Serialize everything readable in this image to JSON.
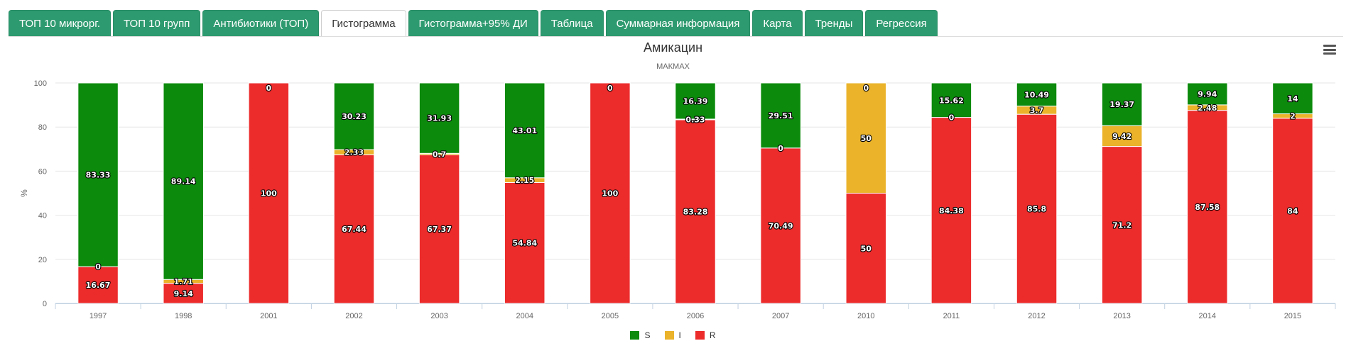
{
  "tabs": [
    {
      "label": "ТОП 10 микрорг.",
      "active": false
    },
    {
      "label": "ТОП 10 групп",
      "active": false
    },
    {
      "label": "Антибиотики (ТОП)",
      "active": false
    },
    {
      "label": "Гистограмма",
      "active": true
    },
    {
      "label": "Гистограмма+95% ДИ",
      "active": false
    },
    {
      "label": "Таблица",
      "active": false
    },
    {
      "label": "Суммарная информация",
      "active": false
    },
    {
      "label": "Карта",
      "active": false
    },
    {
      "label": "Тренды",
      "active": false
    },
    {
      "label": "Регрессия",
      "active": false
    }
  ],
  "menu_icon": "hamburger-menu-icon",
  "colors": {
    "S": "#0b8a0b",
    "I": "#eab32a",
    "R": "#ec2b2b",
    "tab_bg": "#2e9a6f"
  },
  "chart_data": {
    "type": "bar",
    "stacked": true,
    "title": "Амикацин",
    "subtitle": "МАКМАХ",
    "xlabel": "",
    "ylabel": "%",
    "ylim": [
      0,
      100
    ],
    "yticks": [
      0,
      20,
      40,
      60,
      80,
      100
    ],
    "grid": true,
    "legend_position": "bottom-center",
    "categories": [
      "1997",
      "1998",
      "2001",
      "2002",
      "2003",
      "2004",
      "2005",
      "2006",
      "2007",
      "2010",
      "2011",
      "2012",
      "2013",
      "2014",
      "2015"
    ],
    "series": [
      {
        "name": "S",
        "color": "#0b8a0b",
        "values": [
          83.33,
          89.14,
          0,
          30.23,
          31.93,
          43.01,
          0,
          16.39,
          29.51,
          0,
          15.62,
          10.49,
          19.37,
          9.94,
          14
        ]
      },
      {
        "name": "I",
        "color": "#eab32a",
        "values": [
          0,
          1.71,
          0,
          2.33,
          0.7,
          2.15,
          0,
          0.33,
          0,
          50,
          0,
          3.7,
          9.42,
          2.48,
          2
        ]
      },
      {
        "name": "R",
        "color": "#ec2b2b",
        "values": [
          16.67,
          9.14,
          100,
          67.44,
          67.37,
          54.84,
          100,
          83.28,
          70.49,
          50,
          84.38,
          85.8,
          71.2,
          87.58,
          84
        ]
      }
    ],
    "labels": [
      {
        "S": "83.33",
        "I": "0",
        "R": "16.67"
      },
      {
        "S": "89.14",
        "I": "1.71",
        "R": "9.14"
      },
      {
        "S": "",
        "I": "",
        "R": "100",
        "top": "0"
      },
      {
        "S": "30.23",
        "I": "2.33",
        "R": "67.44"
      },
      {
        "S": "31.93",
        "I": "0.7",
        "R": "67.37"
      },
      {
        "S": "43.01",
        "I": "2.15",
        "R": "54.84"
      },
      {
        "S": "",
        "I": "",
        "R": "100",
        "top": "0"
      },
      {
        "S": "16.39",
        "I": "0.33",
        "R": "83.28"
      },
      {
        "S": "29.51",
        "I": "0",
        "R": "70.49"
      },
      {
        "S": "0",
        "I": "50",
        "R": "50"
      },
      {
        "S": "15.62",
        "I": "0",
        "R": "84.38"
      },
      {
        "S": "10.49",
        "I": "3.7",
        "R": "85.8"
      },
      {
        "S": "19.37",
        "I": "9.42",
        "R": "71.2"
      },
      {
        "S": "9.94",
        "I": "2.48",
        "R": "87.58"
      },
      {
        "S": "14",
        "I": "2",
        "R": "84"
      }
    ]
  }
}
